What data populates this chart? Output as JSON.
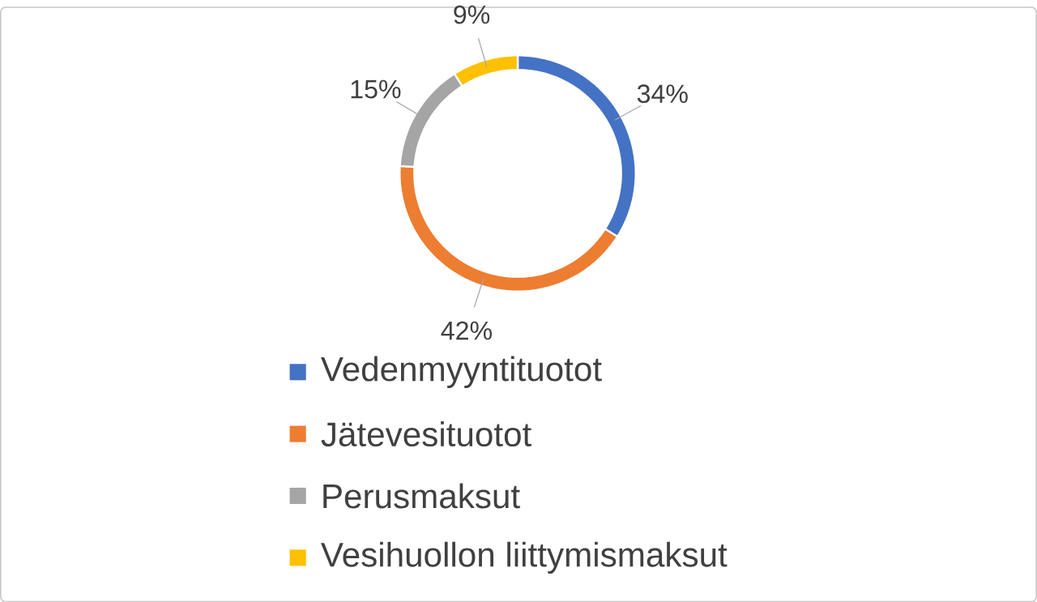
{
  "chart_data": {
    "type": "donut",
    "categories": [
      "Vedenmyyntituotot",
      "Jätevesituotot",
      "Perusmaksut",
      "Vesihuollon liittymismaksut"
    ],
    "values": [
      34,
      42,
      15,
      9
    ],
    "value_labels": [
      "34%",
      "42%",
      "15%",
      "9%"
    ],
    "colors": [
      "#4472c4",
      "#ed7d31",
      "#a5a5a5",
      "#ffc000"
    ],
    "legend": "bottom"
  }
}
